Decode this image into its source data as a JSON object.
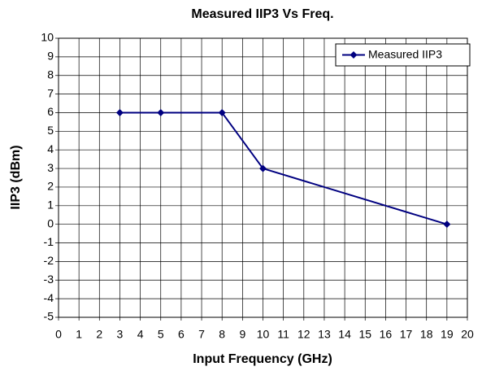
{
  "chart_data": {
    "type": "line",
    "title": "Measured IIP3 Vs Freq.",
    "x_label": "Input Frequency (GHz)",
    "y_label": "IIP3 (dBm)",
    "x": [
      3,
      5,
      8,
      10,
      19
    ],
    "series": [
      {
        "name": "Measured IIP3",
        "color": "#000080",
        "values": [
          6,
          6,
          6,
          3,
          0
        ]
      }
    ],
    "xlim": [
      0,
      20
    ],
    "xticks": [
      0,
      1,
      2,
      3,
      4,
      5,
      6,
      7,
      8,
      9,
      10,
      11,
      12,
      13,
      14,
      15,
      16,
      17,
      18,
      19,
      20
    ],
    "ylim": [
      -5,
      10
    ],
    "yticks": [
      -5,
      -4,
      -3,
      -2,
      -1,
      0,
      1,
      2,
      3,
      4,
      5,
      6,
      7,
      8,
      9,
      10
    ],
    "grid": true,
    "legend": "top-right"
  }
}
